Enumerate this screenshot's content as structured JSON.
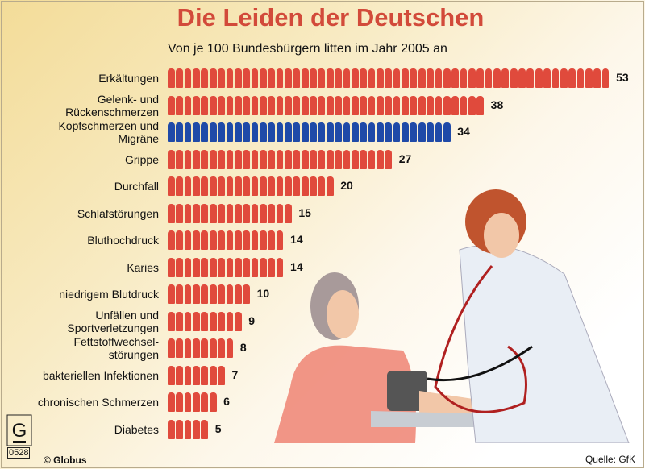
{
  "chart_data": {
    "type": "bar",
    "orientation": "horizontal",
    "title": "Die Leiden der Deutschen",
    "subtitle": "Von je 100 Bundesbürgern litten im Jahr 2005 an",
    "categories": [
      "Erkältungen",
      "Gelenk- und\nRückenschmerzen",
      "Kopfschmerzen und\nMigräne",
      "Grippe",
      "Durchfall",
      "Schlafstörungen",
      "Bluthochdruck",
      "Karies",
      "niedrigem Blutdruck",
      "Unfällen und\nSportverletzungen",
      "Fettstoffwechsel-\nstörungen",
      "bakteriellen Infektionen",
      "chronischen Schmerzen",
      "Diabetes"
    ],
    "values": [
      53,
      38,
      34,
      27,
      20,
      15,
      14,
      14,
      10,
      9,
      8,
      7,
      6,
      5
    ],
    "highlight_index": 2,
    "colors": {
      "default": "#e04a3c",
      "highlight": "#1f4aa8"
    },
    "xlim": [
      0,
      53
    ],
    "grid": false
  },
  "footer": {
    "logo_text": "G",
    "logo_number": "0528",
    "copyright": "© Globus",
    "source": "Quelle: GfK"
  }
}
